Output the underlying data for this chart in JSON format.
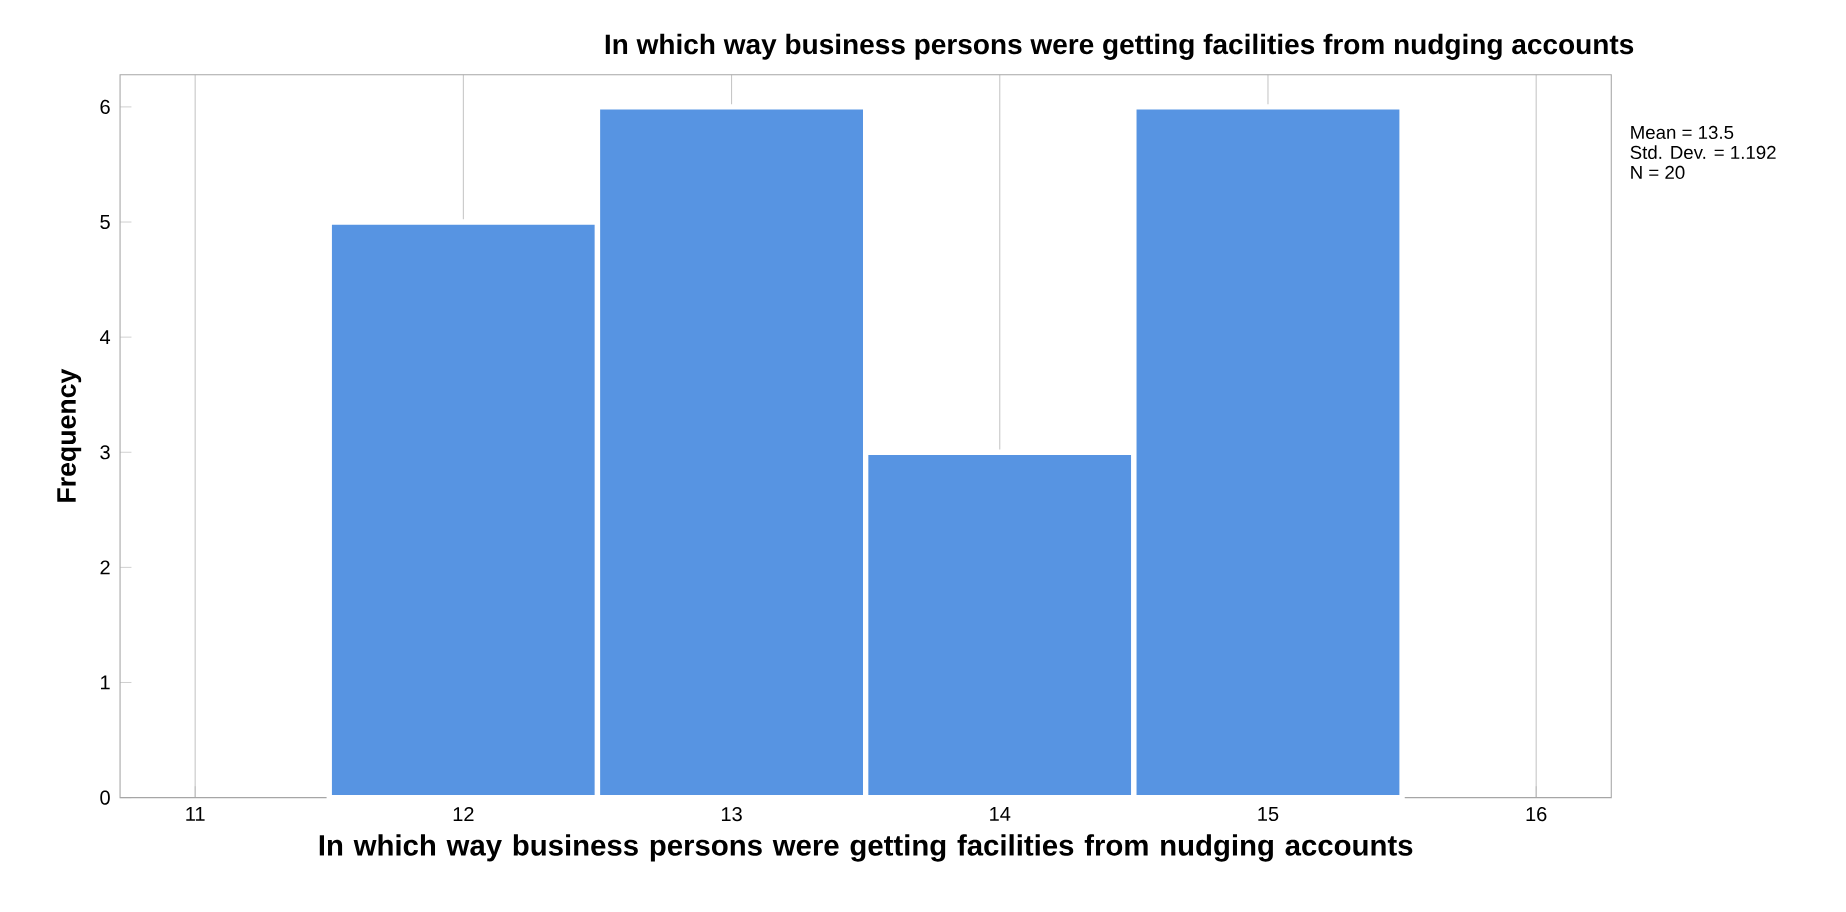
{
  "chart_data": {
    "type": "histogram",
    "title": "In which way business persons were getting facilities from nudging accounts",
    "xlabel": "In which way business persons were getting facilities from nudging accounts",
    "ylabel": "Frequency",
    "bins": [
      11.5,
      12.5,
      13.5,
      14.5,
      15.5
    ],
    "values": [
      5,
      6,
      3,
      6
    ],
    "color": "#5794e2",
    "xlim": [
      10.72,
      16.28
    ],
    "ylim": [
      0,
      6.28
    ],
    "xticks": [
      11,
      12,
      13,
      14,
      15,
      16
    ],
    "yticks": [
      0,
      1,
      2,
      3,
      4,
      5,
      6
    ],
    "grid": "x",
    "annotations": [
      "Mean = 13.5",
      "Std. Dev. = 1.192",
      "N = 20"
    ]
  }
}
